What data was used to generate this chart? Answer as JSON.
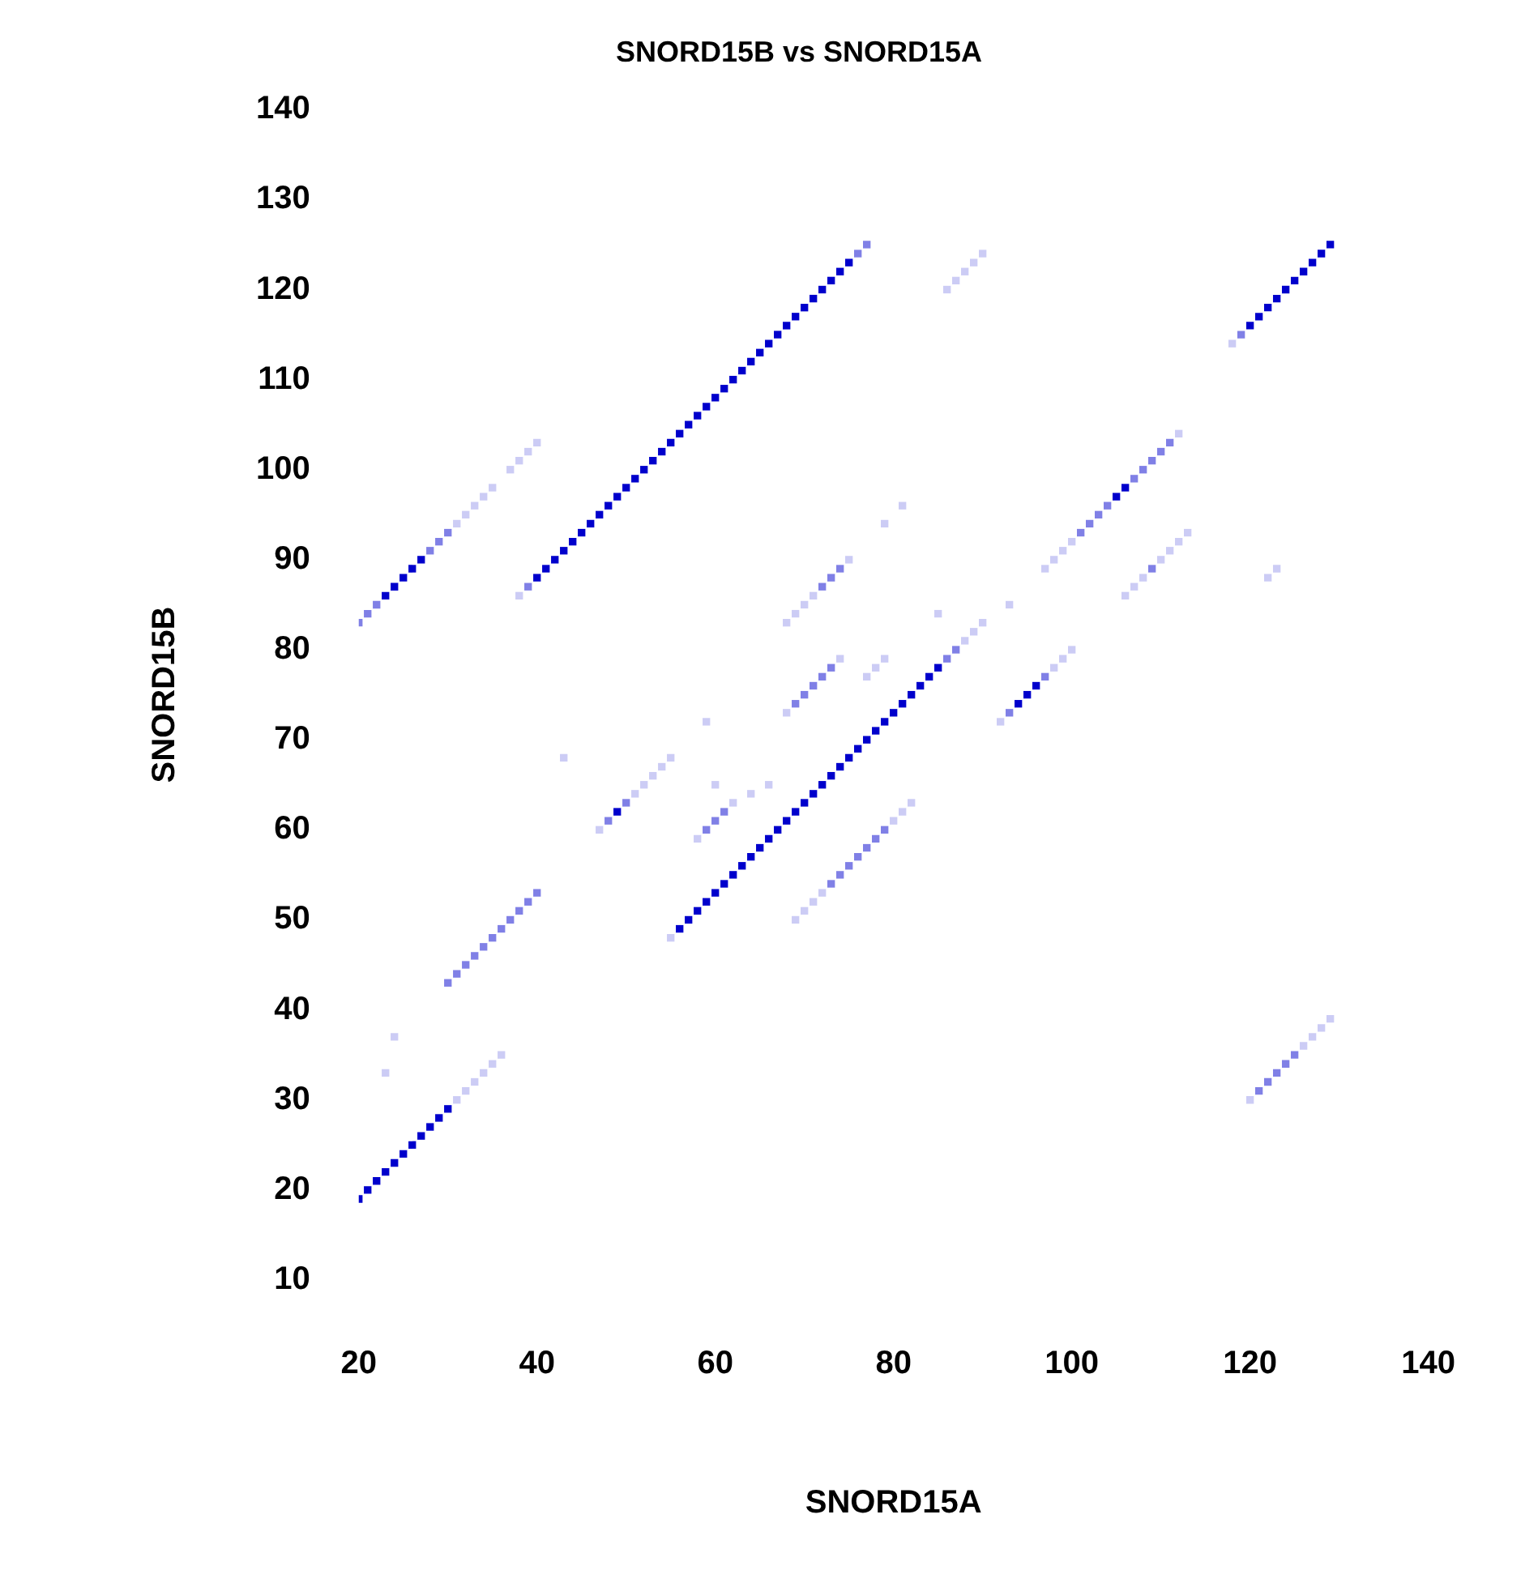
{
  "chart_data": {
    "type": "scatter",
    "title": "SNORD15B vs SNORD15A",
    "xlabel": "SNORD15A",
    "ylabel": "SNORD15B",
    "xlim": [
      20,
      140
    ],
    "ylim": [
      10,
      140
    ],
    "xticks": [
      20,
      40,
      60,
      80,
      100,
      120,
      140
    ],
    "yticks": [
      10,
      20,
      30,
      40,
      50,
      60,
      70,
      80,
      90,
      100,
      110,
      120,
      130,
      140
    ],
    "grid": false,
    "legend": false,
    "marker": "square",
    "series": [
      {
        "color": "#0000cc",
        "x": [
          20,
          21,
          22,
          23,
          24,
          25,
          26,
          27,
          28,
          29,
          30,
          23,
          24,
          25,
          26,
          27,
          40,
          41,
          42,
          43,
          44,
          45,
          46,
          47,
          48,
          49,
          50,
          51,
          52,
          53,
          54,
          55,
          56,
          57,
          58,
          59,
          60,
          61,
          62,
          63,
          64,
          65,
          66,
          67,
          68,
          69,
          70,
          71,
          72,
          73,
          74,
          75,
          56,
          57,
          58,
          59,
          60,
          61,
          62,
          63,
          64,
          65,
          66,
          67,
          68,
          69,
          70,
          71,
          72,
          73,
          74,
          75,
          76,
          77,
          78,
          79,
          80,
          81,
          82,
          83,
          84,
          85,
          49,
          94,
          95,
          96,
          105,
          106,
          120,
          121,
          122,
          123,
          124,
          125,
          126,
          127,
          128,
          129
        ],
        "values": [
          19,
          20,
          21,
          22,
          23,
          24,
          25,
          26,
          27,
          28,
          29,
          86,
          87,
          88,
          89,
          90,
          88,
          89,
          90,
          91,
          92,
          93,
          94,
          95,
          96,
          97,
          98,
          99,
          100,
          101,
          102,
          103,
          104,
          105,
          106,
          107,
          108,
          109,
          110,
          111,
          112,
          113,
          114,
          115,
          116,
          117,
          118,
          119,
          120,
          121,
          122,
          123,
          49,
          50,
          51,
          52,
          53,
          54,
          55,
          56,
          57,
          58,
          59,
          60,
          61,
          62,
          63,
          64,
          65,
          66,
          67,
          68,
          69,
          70,
          71,
          72,
          73,
          74,
          75,
          76,
          77,
          78,
          62,
          74,
          75,
          76,
          97,
          98,
          116,
          117,
          118,
          119,
          120,
          121,
          122,
          123,
          124,
          125
        ]
      },
      {
        "color": "#8080e6",
        "x": [
          30,
          31,
          32,
          33,
          34,
          35,
          36,
          37,
          38,
          39,
          40,
          20,
          21,
          22,
          28,
          29,
          30,
          39,
          76,
          77,
          86,
          87,
          48,
          50,
          59,
          60,
          61,
          73,
          74,
          75,
          76,
          77,
          78,
          79,
          69,
          70,
          71,
          72,
          73,
          72,
          73,
          74,
          119,
          93,
          97,
          101,
          102,
          103,
          104,
          107,
          108,
          109,
          110,
          111,
          109,
          121,
          122,
          123,
          124,
          125
        ],
        "values": [
          43,
          44,
          45,
          46,
          47,
          48,
          49,
          50,
          51,
          52,
          53,
          83,
          84,
          85,
          91,
          92,
          93,
          87,
          124,
          125,
          79,
          80,
          61,
          63,
          60,
          61,
          62,
          54,
          55,
          56,
          57,
          58,
          59,
          60,
          74,
          75,
          76,
          77,
          78,
          87,
          88,
          89,
          115,
          73,
          77,
          93,
          94,
          95,
          96,
          99,
          100,
          101,
          102,
          103,
          89,
          31,
          32,
          33,
          34,
          35
        ]
      },
      {
        "color": "#ccccf5",
        "x": [
          31,
          32,
          33,
          34,
          35,
          36,
          23,
          24,
          31,
          32,
          33,
          34,
          35,
          37,
          38,
          39,
          40,
          38,
          55,
          88,
          89,
          90,
          47,
          51,
          52,
          53,
          54,
          55,
          43,
          59,
          58,
          62,
          60,
          64,
          66,
          69,
          70,
          71,
          72,
          80,
          81,
          82,
          68,
          74,
          77,
          78,
          79,
          68,
          69,
          70,
          71,
          75,
          79,
          81,
          86,
          87,
          88,
          89,
          90,
          118,
          92,
          98,
          99,
          100,
          93,
          85,
          97,
          98,
          99,
          100,
          112,
          106,
          107,
          108,
          110,
          111,
          112,
          113,
          122,
          123,
          120,
          126,
          127,
          128,
          129
        ],
        "values": [
          30,
          31,
          32,
          33,
          34,
          35,
          33,
          37,
          94,
          95,
          96,
          97,
          98,
          100,
          101,
          102,
          103,
          86,
          48,
          81,
          82,
          83,
          60,
          64,
          65,
          66,
          67,
          68,
          68,
          72,
          59,
          63,
          65,
          64,
          65,
          50,
          51,
          52,
          53,
          61,
          62,
          63,
          73,
          79,
          77,
          78,
          79,
          83,
          84,
          85,
          86,
          90,
          94,
          96,
          120,
          121,
          122,
          123,
          124,
          114,
          72,
          78,
          79,
          80,
          85,
          84,
          89,
          90,
          91,
          92,
          104,
          86,
          87,
          88,
          90,
          91,
          92,
          93,
          88,
          89,
          30,
          36,
          37,
          38,
          39
        ]
      }
    ]
  }
}
